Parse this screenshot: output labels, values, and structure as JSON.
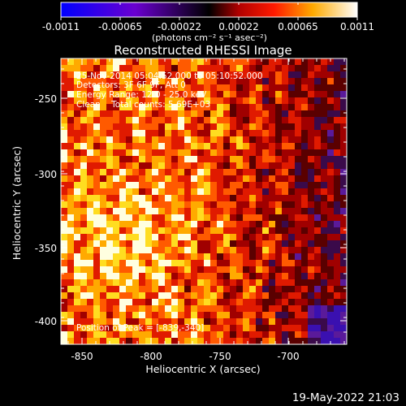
{
  "colorbar": {
    "tick_labels": [
      "-0.0011",
      "-0.00065",
      "-0.00022",
      "0.00022",
      "0.00065",
      "0.0011"
    ],
    "unit_label": "(photons cm⁻² s⁻¹ asec⁻²)",
    "range": [
      -0.0011,
      0.0011
    ]
  },
  "plot": {
    "title": "Reconstructed RHESSI Image",
    "xlabel": "Heliocentric X (arcsec)",
    "ylabel": "Heliocentric Y (arcsec)",
    "x_ticks": [
      "-850",
      "-800",
      "-750",
      "-700"
    ],
    "y_ticks": [
      "-250",
      "-300",
      "-350",
      "-400"
    ],
    "xlim": [
      -862,
      -675
    ],
    "ylim": [
      -410,
      -232
    ]
  },
  "overlay": {
    "time_range": "25-Nov-2014 05:04:52.000 to 05:10:52.000",
    "detectors": "Detectors: 3F 6F 9F, Att 0",
    "energy": "Energy Range: 12.0 - 25.0 keV",
    "clean": "Clean    Total counts: 5.69E+03",
    "peak": "Position of Peak = [-839,-340]"
  },
  "footer": {
    "timestamp": "19-May-2022 21:03"
  },
  "colors": {
    "background": "#000000",
    "text": "#ffffff"
  }
}
